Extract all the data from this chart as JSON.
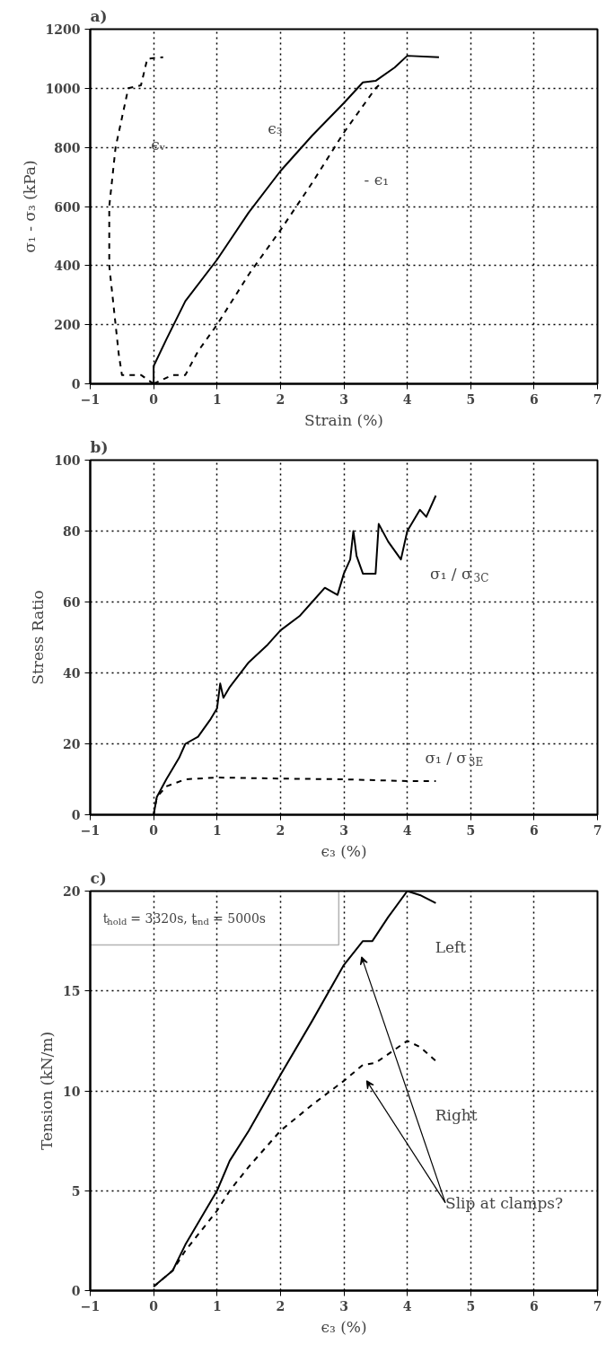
{
  "chart_data": [
    {
      "type": "line",
      "title": "a)",
      "xlabel": "Strain (%)",
      "ylabel": "σ₁ - σ₃ (kPa)",
      "xlim": [
        -1,
        7
      ],
      "ylim": [
        0,
        1200
      ],
      "xticks": [
        -1,
        0,
        1,
        2,
        3,
        4,
        5,
        6,
        7
      ],
      "yticks": [
        0,
        200,
        400,
        600,
        800,
        1000,
        1200
      ],
      "grid": true,
      "series": [
        {
          "color": "#000000",
          "line_style": "dashed",
          "x": [
            0,
            -0.2,
            -0.5,
            -0.55,
            -0.65,
            -0.7,
            -0.7,
            -0.7,
            -0.65,
            -0.6,
            -0.5,
            -0.4,
            -0.2,
            -0.1,
            0.15
          ],
          "values": [
            0,
            30,
            30,
            100,
            300,
            400,
            500,
            600,
            700,
            800,
            900,
            1000,
            1010,
            1100,
            1105
          ]
        },
        {
          "color": "#000000",
          "line_style": "solid",
          "x": [
            0,
            0,
            0.2,
            0.5,
            1,
            1.5,
            2,
            2.5,
            3,
            3.3,
            3.5,
            3.8,
            4,
            4.5
          ],
          "values": [
            0,
            60,
            150,
            280,
            420,
            580,
            720,
            840,
            950,
            1020,
            1025,
            1070,
            1110,
            1105
          ]
        },
        {
          "color": "#000000",
          "line_style": "dashed",
          "x": [
            0,
            0.3,
            0.5,
            0.7,
            1,
            1.5,
            2,
            2.5,
            3,
            3.5,
            3.6
          ],
          "values": [
            0,
            30,
            30,
            110,
            200,
            370,
            520,
            680,
            850,
            1000,
            1020
          ]
        }
      ],
      "annotations": [
        "ϵᵥ",
        "ϵ₃",
        "- ϵ₁"
      ]
    },
    {
      "type": "line",
      "title": "b)",
      "xlabel": "ϵ₃ (%)",
      "ylabel": "Stress Ratio",
      "xlim": [
        -1,
        7
      ],
      "ylim": [
        0,
        100
      ],
      "xticks": [
        -1,
        0,
        1,
        2,
        3,
        4,
        5,
        6,
        7
      ],
      "yticks": [
        0,
        20,
        40,
        60,
        80,
        100
      ],
      "grid": true,
      "series": [
        {
          "color": "#000000",
          "line_style": "solid",
          "x": [
            0,
            0.05,
            0.2,
            0.4,
            0.5,
            0.7,
            0.9,
            1,
            1.05,
            1.1,
            1.2,
            1.5,
            1.8,
            2,
            2.3,
            2.5,
            2.7,
            2.9,
            3,
            3.1,
            3.15,
            3.2,
            3.3,
            3.5,
            3.55,
            3.7,
            3.9,
            4,
            4.2,
            4.3,
            4.45
          ],
          "values": [
            0,
            5,
            10,
            16,
            20,
            22,
            27,
            30,
            37,
            33,
            36,
            43,
            48,
            52,
            56,
            60,
            64,
            62,
            68,
            72,
            80,
            73,
            68,
            68,
            82,
            77,
            72,
            80,
            86,
            84,
            90
          ]
        },
        {
          "color": "#000000",
          "line_style": "dashed",
          "x": [
            0,
            0.05,
            0.2,
            0.5,
            1,
            2,
            3,
            4,
            4.45
          ],
          "values": [
            0,
            5,
            8,
            10,
            10.5,
            10.2,
            10,
            9.5,
            9.5
          ]
        }
      ],
      "annotations": [
        "σ₁ / σ$_{3C}$",
        "σ₁ / σ$_{3E}$"
      ]
    },
    {
      "type": "line",
      "title": "c)",
      "xlabel": "ϵ₃ (%)",
      "ylabel": "Tension (kN/m)",
      "xlim": [
        -1,
        7
      ],
      "ylim": [
        0,
        20
      ],
      "xticks": [
        -1,
        0,
        1,
        2,
        3,
        4,
        5,
        6,
        7
      ],
      "yticks": [
        0,
        5,
        10,
        15,
        20
      ],
      "grid": true,
      "series": [
        {
          "color": "#000000",
          "line_style": "solid",
          "x": [
            0,
            0.3,
            0.5,
            1,
            1.2,
            1.5,
            2,
            2.5,
            3,
            3.3,
            3.45,
            3.7,
            4,
            4.2,
            4.45
          ],
          "values": [
            0.2,
            1,
            2.3,
            5,
            6.5,
            8,
            10.8,
            13.5,
            16.3,
            17.5,
            17.5,
            18.7,
            20,
            19.8,
            19.4
          ]
        },
        {
          "color": "#000000",
          "line_style": "dashed",
          "x": [
            0,
            0.3,
            0.5,
            1,
            1.2,
            1.5,
            2,
            2.5,
            3,
            3.3,
            3.5,
            4,
            4.2,
            4.45
          ],
          "values": [
            0.2,
            1,
            2,
            4,
            5,
            6.2,
            8,
            9.3,
            10.5,
            11.3,
            11.4,
            12.5,
            12.2,
            11.5
          ]
        }
      ],
      "annotations": [
        "t$_{hold}$ = 3320s, t$_{end}$ = 5000s",
        "Left",
        "Right",
        "Slip at clamps?"
      ]
    }
  ]
}
